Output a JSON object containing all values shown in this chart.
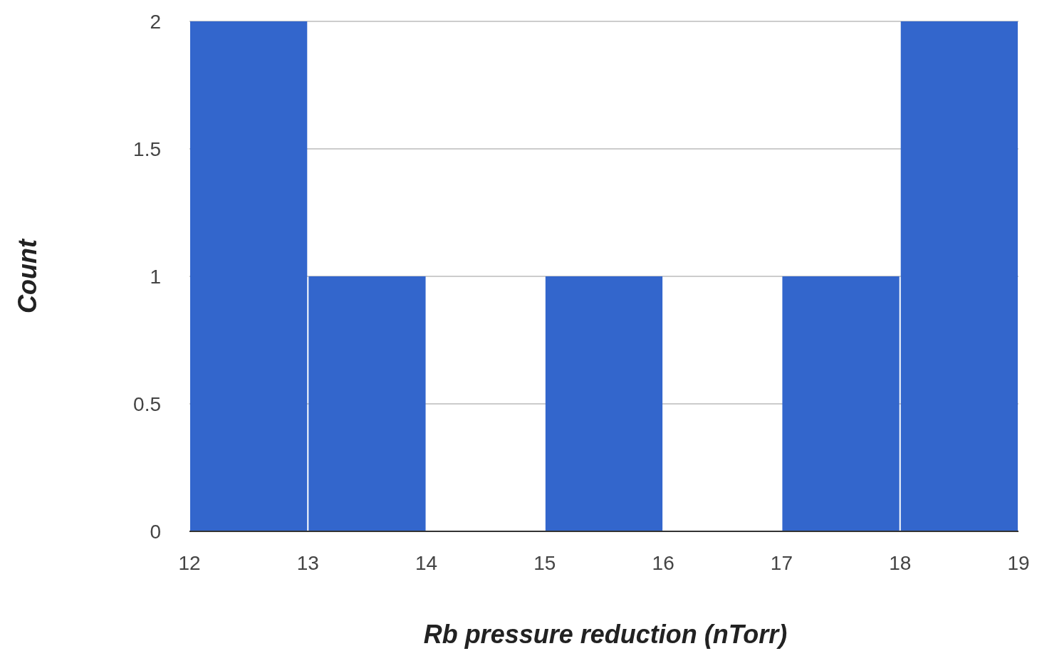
{
  "chart_data": {
    "type": "histogram",
    "xlabel": "Rb pressure reduction (nTorr)",
    "ylabel": "Count",
    "bins": [
      12,
      13,
      14,
      15,
      16,
      17,
      18,
      19
    ],
    "values": [
      2,
      1,
      0,
      1,
      0,
      1,
      2
    ],
    "color": "#3366cc",
    "xlim": [
      12,
      19
    ],
    "xticks": [
      12,
      13,
      14,
      15,
      16,
      17,
      18,
      19
    ],
    "ylim": [
      0,
      2
    ],
    "yticks": [
      0,
      0.5,
      1,
      1.5,
      2
    ],
    "grid": "y"
  }
}
